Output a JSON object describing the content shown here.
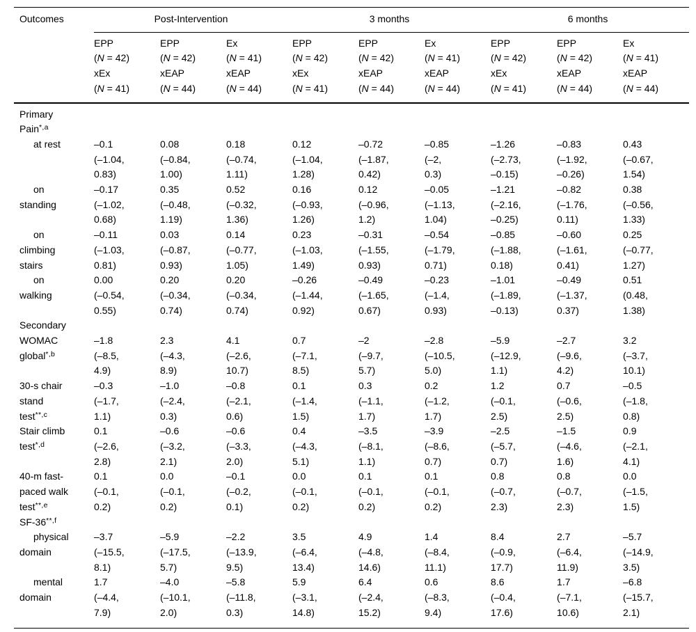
{
  "table": {
    "corner_label": "Outcomes",
    "spanners": [
      {
        "label": "Post-Intervention",
        "span": 3
      },
      {
        "label": "3 months",
        "span": 3
      },
      {
        "label": "6 months",
        "span": 3
      }
    ],
    "columns": [
      {
        "lines": [
          "EPP",
          "(N = 42)",
          "xEx",
          "(N = 41)"
        ]
      },
      {
        "lines": [
          "EPP",
          "(N = 42)",
          "xEAP",
          "(N = 44)"
        ]
      },
      {
        "lines": [
          "Ex",
          "(N = 41)",
          "xEAP",
          "(N = 44)"
        ]
      },
      {
        "lines": [
          "EPP",
          "(N = 42)",
          "xEx",
          "(N = 41)"
        ]
      },
      {
        "lines": [
          "EPP",
          "(N = 42)",
          "xEAP",
          "(N = 44)"
        ]
      },
      {
        "lines": [
          "Ex",
          "(N = 41)",
          "xEAP",
          "(N = 44)"
        ]
      },
      {
        "lines": [
          "EPP",
          "(N = 42)",
          "xEx",
          "(N = 41)"
        ]
      },
      {
        "lines": [
          "EPP",
          "(N = 42)",
          "xEAP",
          "(N = 44)"
        ]
      },
      {
        "lines": [
          "Ex",
          "(N = 41)",
          "xEAP",
          "(N = 44)"
        ]
      }
    ],
    "rows": [
      {
        "type": "section",
        "text": "Primary",
        "sup": ""
      },
      {
        "type": "section",
        "text": "Pain",
        "sup": "*,a"
      },
      {
        "type": "data",
        "indent": true,
        "text": "at rest",
        "sup": "",
        "cells": [
          "–0.1\n(–1.04,\n0.83)",
          "0.08\n(–0.84,\n1.00)",
          "0.18\n(–0.74,\n1.11)",
          "0.12\n(–1.04,\n1.28)",
          "–0.72\n(–1.87,\n0.42)",
          "–0.85\n(–2,\n0.3)",
          "–1.26\n(–2.73,\n–0.15)",
          "–0.83\n(–1.92,\n–0.26)",
          "0.43\n(–0.67,\n1.54)"
        ]
      },
      {
        "type": "data",
        "indent": true,
        "text": "on\nstanding",
        "sup": "",
        "cells": [
          "–0.17\n(–1.02,\n0.68)",
          "0.35\n(–0.48,\n1.19)",
          "0.52\n(–0.32,\n1.36)",
          "0.16\n(–0.93,\n1.26)",
          "0.12\n(–0.96,\n1.2)",
          "–0.05\n(–1.13,\n1.04)",
          "–1.21\n(–2.16,\n–0.25)",
          "–0.82\n(–1.76,\n0.11)",
          "0.38\n(–0.56,\n1.33)"
        ]
      },
      {
        "type": "data",
        "indent": true,
        "text": "on\nclimbing\nstairs",
        "sup": "",
        "cells": [
          "–0.11\n(–1.03,\n0.81)",
          "0.03\n(–0.87,\n0.93)",
          "0.14\n(–0.77,\n1.05)",
          "0.23\n(–1.03,\n1.49)",
          "–0.31\n(–1.55,\n0.93)",
          "–0.54\n(–1.79,\n0.71)",
          "–0.85\n(–1.88,\n0.18)",
          "–0.60\n(–1.61,\n0.41)",
          "0.25\n(–0.77,\n1.27)"
        ]
      },
      {
        "type": "data",
        "indent": true,
        "text": "on\nwalking",
        "sup": "",
        "cells": [
          "0.00\n(–0.54,\n0.55)",
          "0.20\n(–0.34,\n0.74)",
          "0.20\n(–0.34,\n0.74)",
          "–0.26\n(–1.44,\n0.92)",
          "–0.49\n(–1.65,\n0.67)",
          "–0.23\n(–1.4,\n0.93)",
          "–1.01\n(–1.89,\n–0.13)",
          "–0.49\n(–1.37,\n0.37)",
          "0.51\n(0.48,\n1.38)"
        ]
      },
      {
        "type": "section",
        "text": "Secondary",
        "sup": ""
      },
      {
        "type": "data",
        "indent": false,
        "text": "WOMAC\nglobal",
        "sup": "*,b",
        "cells": [
          "–1.8\n(–8.5,\n4.9)",
          "2.3\n(–4.3,\n8.9)",
          "4.1\n(–2.6,\n10.7)",
          "0.7\n(–7.1,\n8.5)",
          "–2\n(–9.7,\n5.7)",
          "–2.8\n(–10.5,\n5.0)",
          "–5.9\n(–12.9,\n1.1)",
          "–2.7\n(–9.6,\n4.2)",
          "3.2\n(–3.7,\n10.1)"
        ]
      },
      {
        "type": "data",
        "indent": false,
        "text": "30-s chair\nstand\ntest",
        "sup": "**,c",
        "cells": [
          "–0.3\n(–1.7,\n1.1)",
          "–1.0\n(–2.4,\n0.3)",
          "–0.8\n(–2.1,\n0.6)",
          "0.1\n(–1.4,\n1.5)",
          "0.3\n(–1.1,\n1.7)",
          "0.2\n(–1.2,\n1.7)",
          "1.2\n(–0.1,\n2.5)",
          "0.7\n(–0.6,\n2.5)",
          "–0.5\n(–1.8,\n0.8)"
        ]
      },
      {
        "type": "data",
        "indent": false,
        "text": "Stair climb\ntest",
        "sup": "*,d",
        "cells": [
          "0.1\n(–2.6,\n2.8)",
          "–0.6\n(–3.2,\n2.1)",
          "–0.6\n(–3.3,\n2.0)",
          "0.4\n(–4.3,\n5.1)",
          "–3.5\n(–8.1,\n1.1)",
          "–3.9\n(–8.6,\n0.7)",
          "–2.5\n(–5.7,\n0.7)",
          "–1.5\n(–4.6,\n1.6)",
          "0.9\n(–2.1,\n4.1)"
        ]
      },
      {
        "type": "data",
        "indent": false,
        "text": "40-m fast-\npaced walk\ntest",
        "sup": "**,e",
        "cells": [
          "0.1\n(–0.1,\n0.2)",
          "0.0\n(–0.1,\n0.2)",
          "–0.1\n(–0.2,\n0.1)",
          "0.0\n(–0.1,\n0.2)",
          "0.1\n(–0.1,\n0.2)",
          "0.1\n(–0.1,\n0.2)",
          "0.8\n(–0.7,\n2.3)",
          "0.8\n(–0.7,\n2.3)",
          "0.0\n(–1.5,\n1.5)"
        ]
      },
      {
        "type": "section",
        "text": "SF-36",
        "sup": "**,f"
      },
      {
        "type": "data",
        "indent": true,
        "text": "physical\ndomain",
        "sup": "",
        "cells": [
          "–3.7\n(–15.5,\n8.1)",
          "–5.9\n(–17.5,\n5.7)",
          "–2.2\n(–13.9,\n9.5)",
          "3.5\n(–6.4,\n13.4)",
          "4.9\n(–4.8,\n14.6)",
          "1.4\n(–8.4,\n11.1)",
          "8.4\n(–0.9,\n17.7)",
          "2.7\n(–6.4,\n11.9)",
          "–5.7\n(–14.9,\n3.5)"
        ]
      },
      {
        "type": "data",
        "indent": true,
        "text": "mental\ndomain",
        "sup": "",
        "cells": [
          "1.7\n(–4.4,\n7.9)",
          "–4.0\n(–10.1,\n2.0)",
          "–5.8\n(–11.8,\n0.3)",
          "5.9\n(–3.1,\n14.8)",
          "6.4\n(–2.4,\n15.2)",
          "0.6\n(–8.3,\n9.4)",
          "8.6\n(–0.4,\n17.6)",
          "1.7\n(–7.1,\n10.6)",
          "–6.8\n(–15.7,\n2.1)"
        ]
      }
    ]
  }
}
